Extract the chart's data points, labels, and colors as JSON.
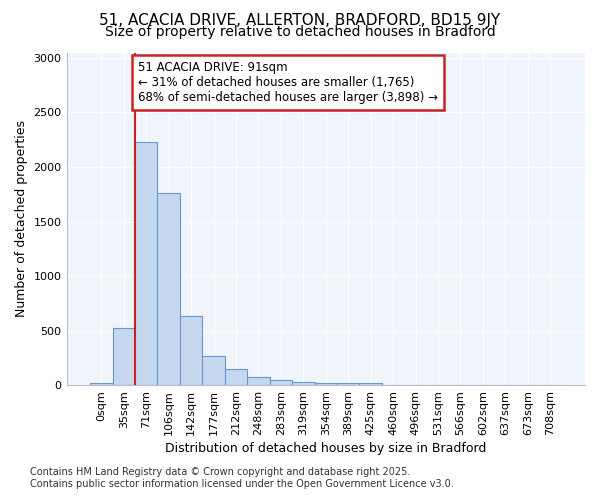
{
  "title_line1": "51, ACACIA DRIVE, ALLERTON, BRADFORD, BD15 9JY",
  "title_line2": "Size of property relative to detached houses in Bradford",
  "xlabel": "Distribution of detached houses by size in Bradford",
  "ylabel": "Number of detached properties",
  "fig_facecolor": "#ffffff",
  "plot_facecolor": "#f0f4fb",
  "bar_color": "#c5d8f0",
  "bar_edge_color": "#6699cc",
  "categories": [
    "0sqm",
    "35sqm",
    "71sqm",
    "106sqm",
    "142sqm",
    "177sqm",
    "212sqm",
    "248sqm",
    "283sqm",
    "319sqm",
    "354sqm",
    "389sqm",
    "425sqm",
    "460sqm",
    "496sqm",
    "531sqm",
    "566sqm",
    "602sqm",
    "637sqm",
    "673sqm",
    "708sqm"
  ],
  "values": [
    22,
    525,
    2230,
    1760,
    635,
    270,
    150,
    75,
    50,
    30,
    20,
    18,
    18,
    0,
    0,
    0,
    0,
    0,
    0,
    0,
    0
  ],
  "annotation_line1": "51 ACACIA DRIVE: 91sqm",
  "annotation_line2": "← 31% of detached houses are smaller (1,765)",
  "annotation_line3": "68% of semi-detached houses are larger (3,898) →",
  "vline_color": "#cc2222",
  "annotation_box_edgecolor": "#cc2222",
  "ylim": [
    0,
    3050
  ],
  "yticks": [
    0,
    500,
    1000,
    1500,
    2000,
    2500,
    3000
  ],
  "footnote1": "Contains HM Land Registry data © Crown copyright and database right 2025.",
  "footnote2": "Contains public sector information licensed under the Open Government Licence v3.0.",
  "title_fontsize": 11,
  "subtitle_fontsize": 10,
  "axis_label_fontsize": 9,
  "tick_fontsize": 8,
  "annotation_fontsize": 8.5,
  "footnote_fontsize": 7
}
